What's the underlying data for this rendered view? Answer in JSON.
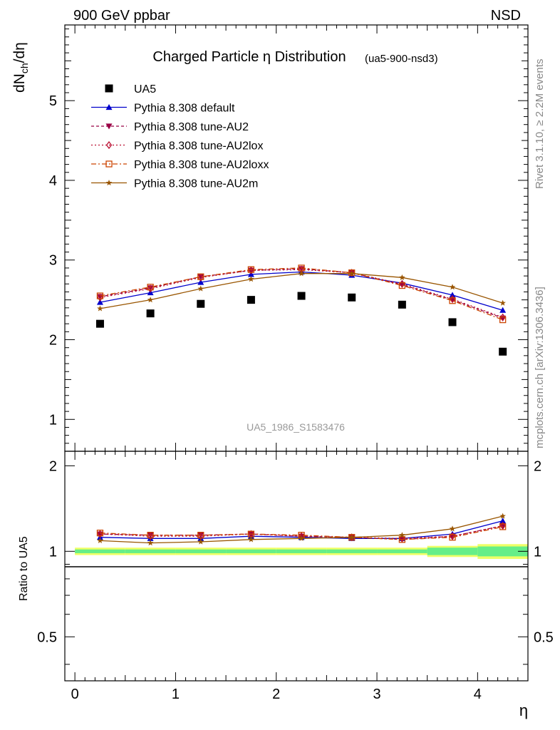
{
  "header": {
    "left": "900 GeV ppbar",
    "right": "NSD"
  },
  "side_labels": {
    "rivet": "Rivet 3.1.10, ≥ 2.2M events",
    "mcplots": "mcplots.cern.ch [arXiv:1306.3436]"
  },
  "chart_data": [
    {
      "panel": "main",
      "type": "line",
      "title": "Charged Particle η Distribution",
      "subtitle": "(ua5-900-nsd3)",
      "watermark": "UA5_1986_S1583476",
      "ylabel": "dN_ch/dη",
      "xlabel": "η",
      "xlim": [
        -0.1,
        4.5
      ],
      "ylim": [
        0.6,
        5.95
      ],
      "xticks": [
        0,
        1,
        2,
        3,
        4
      ],
      "yticks": [
        1,
        2,
        3,
        4,
        5
      ],
      "legend_position": "top-left",
      "x": [
        0.25,
        0.75,
        1.25,
        1.75,
        2.25,
        2.75,
        3.25,
        3.75,
        4.25
      ],
      "series": [
        {
          "name": "UA5",
          "color": "#000000",
          "marker": "square",
          "values": [
            2.2,
            2.33,
            2.45,
            2.5,
            2.55,
            2.53,
            2.44,
            2.22,
            1.85
          ]
        },
        {
          "name": "Pythia 8.308 default",
          "color": "#0000cc",
          "marker": "triangle-up",
          "dash": "",
          "values": [
            2.47,
            2.59,
            2.72,
            2.82,
            2.85,
            2.81,
            2.71,
            2.56,
            2.37
          ]
        },
        {
          "name": "Pythia 8.308 tune-AU2",
          "color": "#990044",
          "marker": "triangle-down",
          "dash": "4 3",
          "values": [
            2.54,
            2.65,
            2.79,
            2.87,
            2.89,
            2.84,
            2.69,
            2.5,
            2.27
          ]
        },
        {
          "name": "Pythia 8.308 tune-AU2lox",
          "color": "#bb1133",
          "marker": "diamond",
          "dash": "2 3",
          "values": [
            2.53,
            2.64,
            2.78,
            2.87,
            2.88,
            2.84,
            2.7,
            2.51,
            2.28
          ]
        },
        {
          "name": "Pythia 8.308 tune-AU2loxx",
          "color": "#cc4400",
          "marker": "square-open",
          "dash": "7 3 2 3",
          "values": [
            2.55,
            2.66,
            2.79,
            2.88,
            2.9,
            2.84,
            2.68,
            2.49,
            2.25
          ]
        },
        {
          "name": "Pythia 8.308 tune-AU2m",
          "color": "#995500",
          "marker": "star",
          "dash": "",
          "values": [
            2.39,
            2.5,
            2.64,
            2.76,
            2.83,
            2.83,
            2.78,
            2.66,
            2.46
          ]
        }
      ]
    },
    {
      "panel": "ratio",
      "type": "line",
      "ylabel": "Ratio to UA5",
      "xlabel": "η",
      "xlim": [
        -0.1,
        4.5
      ],
      "ylim": [
        0.35,
        2.25
      ],
      "yticks": [
        0.5,
        1,
        2
      ],
      "ytick_labels": [
        "0.5",
        "1",
        "2"
      ],
      "xticks": [
        0,
        1,
        2,
        3,
        4
      ],
      "x": [
        0.25,
        0.75,
        1.25,
        1.75,
        2.25,
        2.75,
        3.25,
        3.75,
        4.25
      ],
      "bands": {
        "inner_color": "#66ee88",
        "outer_color": "#eeff66",
        "edges": [
          0,
          0.5,
          1,
          1.5,
          2,
          2.5,
          3,
          3.5,
          4,
          4.5
        ],
        "inner_halfwidth": [
          0.015,
          0.015,
          0.015,
          0.015,
          0.015,
          0.015,
          0.015,
          0.03,
          0.04
        ],
        "outer_halfwidth": [
          0.03,
          0.03,
          0.03,
          0.03,
          0.03,
          0.03,
          0.03,
          0.045,
          0.06
        ]
      },
      "series": [
        {
          "name": "Pythia 8.308 default",
          "values": [
            1.12,
            1.11,
            1.11,
            1.13,
            1.12,
            1.11,
            1.11,
            1.15,
            1.28
          ]
        },
        {
          "name": "Pythia 8.308 tune-AU2",
          "values": [
            1.15,
            1.14,
            1.14,
            1.15,
            1.13,
            1.12,
            1.1,
            1.13,
            1.23
          ]
        },
        {
          "name": "Pythia 8.308 tune-AU2lox",
          "values": [
            1.15,
            1.13,
            1.13,
            1.15,
            1.13,
            1.12,
            1.11,
            1.13,
            1.23
          ]
        },
        {
          "name": "Pythia 8.308 tune-AU2loxx",
          "values": [
            1.16,
            1.14,
            1.14,
            1.15,
            1.14,
            1.12,
            1.1,
            1.12,
            1.22
          ]
        },
        {
          "name": "Pythia 8.308 tune-AU2m",
          "values": [
            1.09,
            1.07,
            1.08,
            1.1,
            1.11,
            1.12,
            1.14,
            1.2,
            1.33
          ]
        }
      ]
    }
  ]
}
